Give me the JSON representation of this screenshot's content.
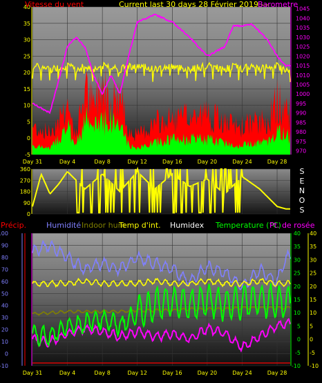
{
  "header": {
    "left_label": "Vitesse du vent",
    "center_label": "Current last 30 days 28 Février 2019 ---",
    "right_label": "Barometre"
  },
  "direction_letters": [
    "S",
    "E",
    "N",
    "O",
    "S"
  ],
  "bottom_header": {
    "precip": "Précip.",
    "humidite": "Humidité",
    "indoor_hum": "Indoor hum",
    "temp_int": "Temp d'int.",
    "humidex": "Humidex",
    "temperature": "Temperature (°C)",
    "dewpoint": "Pt. de rosée"
  },
  "colors": {
    "wind_gust": "#ff0000",
    "wind_avg": "#00ff00",
    "barometer": "#ff00ff",
    "direction": "#ffff00",
    "humidity": "#8080ff",
    "indoor_hum": "#808000",
    "temp_int": "#ffff00",
    "temperature": "#00ff00",
    "dewpoint": "#ff00ff",
    "precip": "#ff0000"
  },
  "chart_data": [
    {
      "type": "area",
      "name": "wind-barometer",
      "x_ticks": [
        "Day 31",
        "Day 4",
        "Day 8",
        "Day 12",
        "Day 16",
        "Day 20",
        "Day 24",
        "Day 28"
      ],
      "y_left_ticks": [
        "-5",
        "0",
        "5",
        "10",
        "15",
        "20",
        "25",
        "30",
        "35",
        "40"
      ],
      "y_right_ticks": [
        "970",
        "975",
        "980",
        "985",
        "990",
        "995",
        "1000",
        "1005",
        "1010",
        "1015",
        "1020",
        "1025",
        "1030",
        "1035",
        "1040",
        "1045"
      ],
      "ylim_left": [
        -5,
        40
      ],
      "ylim_right": [
        968,
        1046
      ],
      "days": [
        0,
        2,
        4,
        5,
        6,
        7,
        8,
        9,
        10,
        11,
        12,
        14,
        16,
        18,
        20,
        22,
        23,
        24,
        25,
        26,
        27,
        28,
        29
      ],
      "barometer": [
        995,
        990,
        1025,
        1030,
        1025,
        1010,
        1000,
        1010,
        1000,
        1020,
        1038,
        1042,
        1038,
        1030,
        1020,
        1025,
        1036,
        1036,
        1037,
        1033,
        1028,
        1020,
        1015
      ],
      "wind_gust": [
        8,
        6,
        15,
        5,
        20,
        14,
        22,
        16,
        18,
        7,
        5,
        9,
        10,
        11,
        12,
        9,
        8,
        8,
        9,
        9,
        10,
        16,
        13
      ],
      "wind_avg": [
        2,
        1,
        8,
        2,
        11,
        7,
        12,
        10,
        9,
        2,
        1,
        3,
        4,
        4,
        4,
        3,
        2,
        2,
        3,
        3,
        3,
        7,
        5
      ],
      "indoor_temp": [
        22,
        21,
        22,
        21,
        22,
        21,
        22,
        22,
        21,
        22,
        22,
        21,
        22,
        21,
        22,
        21,
        22,
        21,
        22,
        21,
        22,
        22,
        21
      ]
    },
    {
      "type": "area",
      "name": "wind-direction",
      "y_ticks": [
        "0",
        "90",
        "180",
        "270",
        "360"
      ],
      "ylim": [
        0,
        360
      ],
      "days": [
        0,
        1,
        2,
        3,
        4,
        6,
        8,
        10,
        12,
        14,
        16,
        18,
        20,
        22,
        24,
        26,
        28,
        29
      ],
      "direction": [
        60,
        320,
        160,
        240,
        340,
        200,
        320,
        180,
        340,
        200,
        320,
        220,
        280,
        160,
        300,
        200,
        60,
        40
      ]
    },
    {
      "type": "line",
      "name": "temperature-humidity",
      "x_ticks": [
        "Day 31",
        "Day 4",
        "Day 8",
        "Day 12",
        "Day 16",
        "Day 20",
        "Day 24",
        "Day 28"
      ],
      "y_left_ticks": [
        "-10",
        "0",
        "10",
        "20",
        "30",
        "40",
        "50",
        "60",
        "70",
        "80",
        "90",
        "100"
      ],
      "y_right_ticks": [
        "-10",
        "-5",
        "0",
        "5",
        "10",
        "15",
        "20",
        "25",
        "30",
        "35",
        "40"
      ],
      "ylim_left": [
        -10,
        100
      ],
      "ylim_right": [
        -10,
        40
      ],
      "days": [
        0,
        2,
        4,
        6,
        8,
        10,
        12,
        14,
        16,
        18,
        20,
        22,
        24,
        26,
        28,
        29
      ],
      "humidity": [
        85,
        90,
        80,
        70,
        75,
        70,
        80,
        75,
        70,
        60,
        72,
        68,
        55,
        70,
        60,
        80
      ],
      "indoor_hum": [
        33,
        34,
        35,
        35,
        35,
        35,
        36,
        36,
        36,
        37,
        37,
        37,
        38,
        38,
        38,
        38
      ],
      "temp_int": [
        21,
        21,
        21,
        22,
        21,
        21,
        21,
        22,
        21,
        21,
        22,
        21,
        21,
        22,
        21,
        21
      ],
      "temperature": [
        2,
        1,
        5,
        6,
        8,
        5,
        10,
        13,
        14,
        13,
        15,
        13,
        14,
        15,
        14,
        14
      ],
      "dewpoint": [
        0,
        -1,
        2,
        4,
        3,
        1,
        3,
        1,
        2,
        0,
        4,
        2,
        -3,
        1,
        5,
        6
      ],
      "precip": [
        0,
        0,
        0,
        0,
        0,
        0,
        0,
        0,
        0,
        0,
        0,
        0,
        0,
        0,
        0,
        0
      ]
    }
  ]
}
